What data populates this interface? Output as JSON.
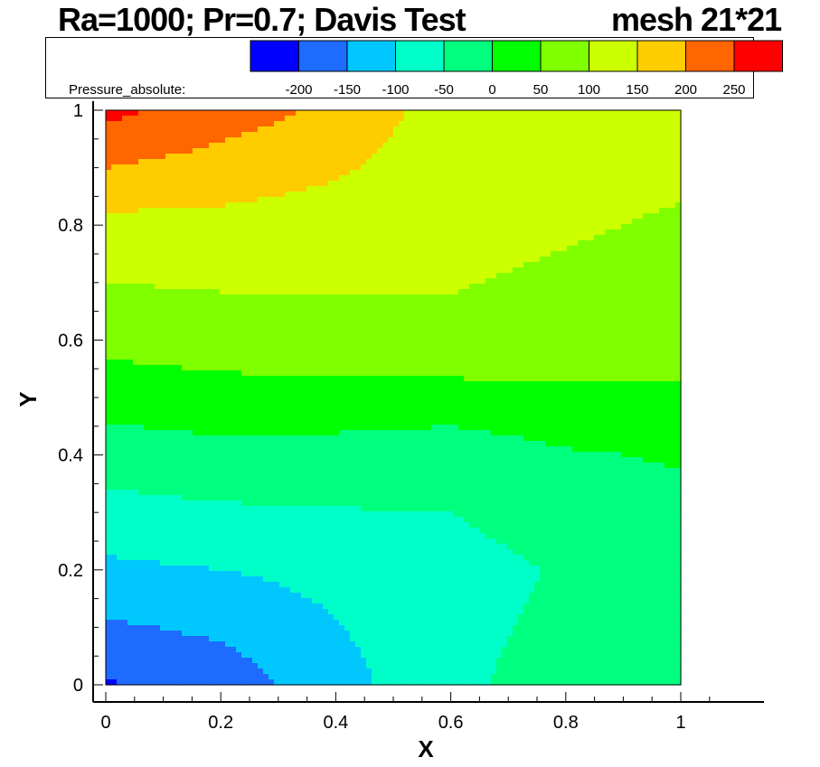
{
  "title": {
    "left": "Ra=1000; Pr=0.7; Davis Test",
    "right": "mesh 21*21"
  },
  "legend": {
    "label": "Pressure_absolute:",
    "ticks": [
      "-200",
      "-150",
      "-100",
      "-50",
      "0",
      "50",
      "100",
      "150",
      "200",
      "250"
    ],
    "colors": [
      "#0000ff",
      "#1e6bff",
      "#00c8ff",
      "#00ffc8",
      "#00ff7f",
      "#00ff00",
      "#7fff00",
      "#ccff00",
      "#ffcc00",
      "#ff6600",
      "#ff0000"
    ]
  },
  "chart_data": {
    "type": "contour",
    "variable": "Pressure_absolute",
    "xlabel": "X",
    "ylabel": "Y",
    "xlim": [
      0,
      1
    ],
    "ylim": [
      0,
      1
    ],
    "xticks": [
      "0",
      "0.2",
      "0.4",
      "0.6",
      "0.8",
      "1"
    ],
    "yticks": [
      "0",
      "0.2",
      "0.4",
      "0.6",
      "0.8",
      "1"
    ],
    "levels": [
      -200,
      -150,
      -100,
      -50,
      0,
      50,
      100,
      150,
      200,
      250
    ],
    "field": {
      "x": [
        0,
        0.2,
        0.4,
        0.6,
        0.8,
        1.0
      ],
      "y": [
        0,
        0.2,
        0.4,
        0.6,
        0.8,
        1.0
      ],
      "values": [
        [
          -205,
          -180,
          -120,
          -60,
          -30,
          -30
        ],
        [
          -110,
          -100,
          -85,
          -70,
          -45,
          -35
        ],
        [
          -25,
          -15,
          -20,
          -30,
          -5,
          5
        ],
        [
          65,
          75,
          85,
          90,
          80,
          75
        ],
        [
          135,
          135,
          125,
          115,
          105,
          95
        ],
        [
          265,
          225,
          190,
          125,
          125,
          120
        ]
      ]
    }
  }
}
